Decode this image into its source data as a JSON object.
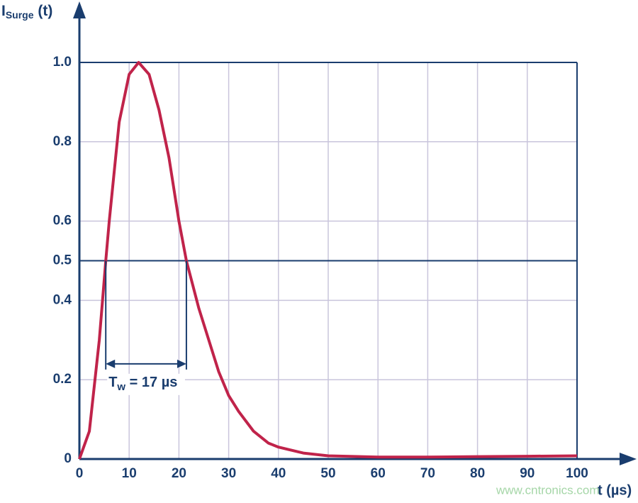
{
  "chart_data": {
    "type": "line",
    "y_label": {
      "main": "I",
      "sub": "Surge",
      "rest": " (t)"
    },
    "x_label": "t (µs)",
    "x": [
      0,
      2,
      4,
      5.3,
      6,
      8,
      10,
      11.9,
      14,
      16,
      18,
      20,
      21.5,
      24,
      26,
      28,
      30,
      32,
      35,
      38,
      40,
      45,
      50,
      60,
      70,
      80,
      90,
      100
    ],
    "series": [
      {
        "name": "I_Surge(t)",
        "color": "#c0234a",
        "values": [
          0,
          0.07,
          0.3,
          0.5,
          0.6,
          0.85,
          0.97,
          1.0,
          0.97,
          0.88,
          0.76,
          0.6,
          0.5,
          0.38,
          0.3,
          0.22,
          0.16,
          0.12,
          0.07,
          0.04,
          0.03,
          0.015,
          0.008,
          0.005,
          0.005,
          0.006,
          0.007,
          0.008
        ]
      }
    ],
    "xlim": [
      0,
      100
    ],
    "ylim": [
      0,
      1
    ],
    "xticks": [
      0,
      10,
      20,
      30,
      40,
      50,
      60,
      70,
      80,
      90,
      100
    ],
    "yticks": [
      0,
      0.2,
      0.4,
      0.5,
      0.6,
      0.8,
      {
        "value": 1,
        "label": "1.0"
      }
    ],
    "reference_line": 0.5,
    "grid": true,
    "annotation": {
      "main": "T",
      "sub": "w",
      "rest": " = 17 µs",
      "x": [
        5.3,
        21.5
      ],
      "y": 0.24
    },
    "watermark": "www.cntronics.com"
  }
}
